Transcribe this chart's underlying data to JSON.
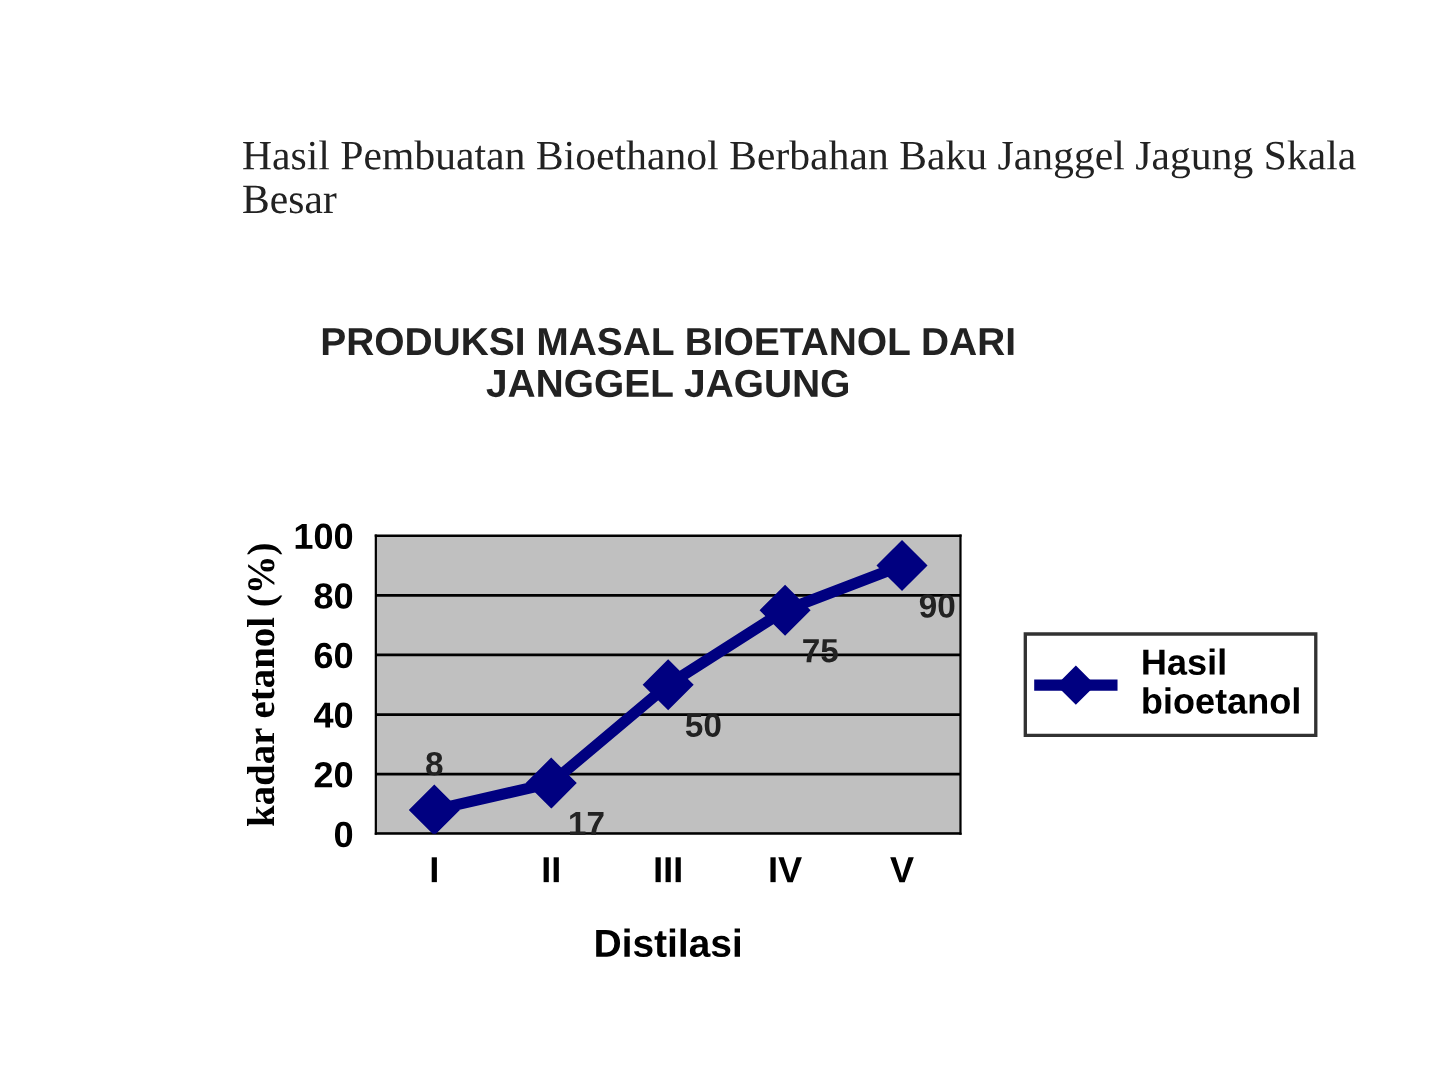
{
  "chart_data": {
    "type": "line",
    "title": "PRODUKSI MASAL BIOETANOL DARI\nJANGGEL JAGUNG",
    "xlabel": "Distilasi",
    "ylabel": "kadar etanol (%)",
    "annotations": [
      "Hasil Pembuatan Bioethanol Berbahan Baku Janggel Jagung Skala Besar"
    ],
    "categories": [
      "I",
      "II",
      "III",
      "IV",
      "V"
    ],
    "series": [
      {
        "name": "Hasil bioetanol",
        "color": "#000080",
        "values": [
          8,
          17,
          50,
          75,
          90
        ]
      }
    ],
    "ylim": [
      0,
      100
    ],
    "yticks": [
      0,
      20,
      40,
      60,
      80,
      100
    ],
    "grid": "y",
    "legend": "right",
    "marker": "diamond",
    "line_style": "solid",
    "data_labels": true
  }
}
